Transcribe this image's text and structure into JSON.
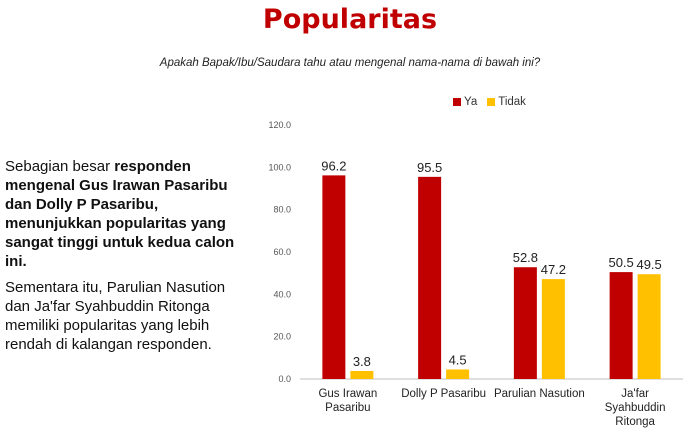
{
  "header": {
    "title": "Popularitas",
    "subtitle": "Apakah Bapak/Ibu/Saudara tahu atau mengenal nama-nama di bawah ini?"
  },
  "description": {
    "p1_pre": "Sebagian besar ",
    "p1_bold": "responden mengenal Gus Irawan Pasaribu dan Dolly P Pasaribu, menunjukkan popularitas yang sangat tinggi untuk kedua calon ini.",
    "p2": "Sementara itu, Parulian Nasution dan Ja'far Syahbuddin Ritonga memiliki popularitas yang lebih rendah di kalangan responden."
  },
  "colors": {
    "ya": "#c00000",
    "tidak": "#ffc000"
  },
  "chart_data": {
    "type": "bar",
    "categories": [
      [
        "Gus Irawan",
        "Pasaribu"
      ],
      [
        "Dolly P Pasaribu"
      ],
      [
        "Parulian Nasution"
      ],
      [
        "Ja'far",
        "Syahbuddin",
        "Ritonga"
      ]
    ],
    "series": [
      {
        "name": "Ya",
        "values": [
          96.2,
          95.5,
          52.8,
          50.5
        ]
      },
      {
        "name": "Tidak",
        "values": [
          3.8,
          4.5,
          47.2,
          49.5
        ]
      }
    ],
    "ylim": [
      0,
      120
    ],
    "yticks": [
      "0.0",
      "20.0",
      "40.0",
      "60.0",
      "80.0",
      "100.0",
      "120.0"
    ],
    "legend_position": "top-right",
    "grid": false
  }
}
